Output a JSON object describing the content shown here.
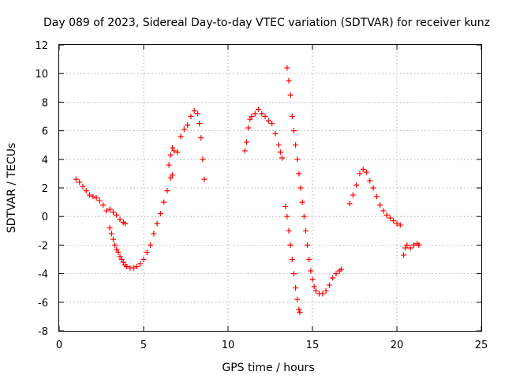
{
  "chart_data": {
    "type": "scatter",
    "title": "Day 089 of 2023, Sidereal Day-to-day VTEC variation (SDTVAR) for receiver kunz",
    "xlabel": "GPS time / hours",
    "ylabel": "SDTVAR / TECUs",
    "xlim": [
      0,
      25
    ],
    "ylim": [
      -8,
      12
    ],
    "xticks": [
      "0",
      "5",
      "10",
      "15",
      "20",
      "25"
    ],
    "yticks": [
      "-8",
      "-6",
      "-4",
      "-2",
      "0",
      "2",
      "4",
      "6",
      "8",
      "10",
      "12"
    ],
    "grid": true,
    "marker": "+",
    "color": "#ff0000",
    "series": [
      {
        "segments": [
          [
            [
              1.0,
              2.6
            ],
            [
              1.2,
              2.4
            ],
            [
              1.4,
              2.1
            ],
            [
              1.6,
              1.8
            ],
            [
              1.8,
              1.5
            ],
            [
              2.0,
              1.4
            ],
            [
              2.2,
              1.3
            ],
            [
              2.4,
              1.1
            ],
            [
              2.6,
              0.8
            ],
            [
              2.8,
              0.4
            ],
            [
              3.0,
              0.5
            ],
            [
              3.2,
              0.3
            ],
            [
              3.4,
              0.1
            ],
            [
              3.6,
              -0.2
            ],
            [
              3.8,
              -0.4
            ],
            [
              3.9,
              -0.5
            ]
          ],
          [
            [
              3.0,
              -0.8
            ],
            [
              3.1,
              -1.2
            ],
            [
              3.2,
              -1.6
            ],
            [
              3.3,
              -2.0
            ],
            [
              3.4,
              -2.3
            ],
            [
              3.5,
              -2.5
            ],
            [
              3.6,
              -2.8
            ],
            [
              3.7,
              -3.0
            ],
            [
              3.8,
              -3.2
            ],
            [
              3.9,
              -3.4
            ],
            [
              4.0,
              -3.5
            ],
            [
              4.2,
              -3.6
            ],
            [
              4.4,
              -3.6
            ],
            [
              4.6,
              -3.5
            ],
            [
              4.8,
              -3.3
            ],
            [
              5.0,
              -3.0
            ],
            [
              5.2,
              -2.5
            ],
            [
              5.4,
              -2.0
            ],
            [
              5.6,
              -1.2
            ],
            [
              5.8,
              -0.5
            ],
            [
              6.0,
              0.2
            ],
            [
              6.2,
              1.0
            ],
            [
              6.4,
              1.8
            ],
            [
              6.6,
              2.7
            ],
            [
              6.7,
              2.9
            ]
          ],
          [
            [
              6.5,
              3.6
            ],
            [
              6.6,
              4.3
            ],
            [
              6.7,
              4.8
            ],
            [
              6.8,
              4.6
            ],
            [
              7.0,
              4.5
            ],
            [
              7.2,
              5.6
            ],
            [
              7.4,
              6.1
            ],
            [
              7.6,
              6.4
            ],
            [
              7.8,
              7.0
            ],
            [
              8.0,
              7.4
            ],
            [
              8.2,
              7.2
            ],
            [
              8.3,
              6.5
            ],
            [
              8.4,
              5.5
            ],
            [
              8.5,
              4.0
            ],
            [
              8.6,
              2.6
            ]
          ],
          [
            [
              11.0,
              4.6
            ],
            [
              11.1,
              5.2
            ],
            [
              11.2,
              6.2
            ],
            [
              11.3,
              6.8
            ],
            [
              11.4,
              7.0
            ],
            [
              11.6,
              7.2
            ],
            [
              11.8,
              7.5
            ],
            [
              12.0,
              7.2
            ],
            [
              12.2,
              7.0
            ],
            [
              12.4,
              6.7
            ],
            [
              12.6,
              6.5
            ],
            [
              12.8,
              5.8
            ],
            [
              13.0,
              5.0
            ],
            [
              13.1,
              4.5
            ],
            [
              13.2,
              4.1
            ]
          ],
          [
            [
              13.5,
              10.4
            ],
            [
              13.6,
              9.5
            ],
            [
              13.7,
              8.5
            ],
            [
              13.8,
              7.0
            ],
            [
              13.9,
              6.0
            ],
            [
              14.0,
              5.0
            ],
            [
              14.1,
              4.0
            ],
            [
              14.2,
              3.0
            ],
            [
              14.3,
              2.0
            ],
            [
              14.4,
              1.0
            ],
            [
              14.5,
              0.0
            ],
            [
              14.6,
              -1.0
            ],
            [
              14.7,
              -2.0
            ],
            [
              14.8,
              -3.0
            ],
            [
              14.9,
              -3.8
            ],
            [
              15.0,
              -4.4
            ],
            [
              15.1,
              -4.9
            ],
            [
              15.2,
              -5.2
            ],
            [
              15.4,
              -5.4
            ],
            [
              15.6,
              -5.4
            ],
            [
              15.8,
              -5.2
            ],
            [
              16.0,
              -4.8
            ],
            [
              16.2,
              -4.3
            ],
            [
              16.4,
              -4.0
            ],
            [
              16.6,
              -3.8
            ],
            [
              16.7,
              -3.7
            ]
          ],
          [
            [
              13.4,
              0.7
            ],
            [
              13.5,
              0.0
            ],
            [
              13.6,
              -1.0
            ],
            [
              13.7,
              -2.0
            ],
            [
              13.8,
              -3.0
            ],
            [
              13.9,
              -4.0
            ],
            [
              14.0,
              -5.0
            ],
            [
              14.1,
              -5.8
            ],
            [
              14.2,
              -6.5
            ],
            [
              14.25,
              -6.7
            ]
          ],
          [
            [
              17.2,
              0.9
            ],
            [
              17.4,
              1.5
            ],
            [
              17.6,
              2.2
            ],
            [
              17.8,
              3.0
            ],
            [
              18.0,
              3.3
            ],
            [
              18.2,
              3.1
            ],
            [
              18.4,
              2.5
            ],
            [
              18.6,
              2.0
            ],
            [
              18.8,
              1.4
            ],
            [
              19.0,
              0.8
            ],
            [
              19.2,
              0.4
            ],
            [
              19.4,
              0.1
            ],
            [
              19.6,
              -0.1
            ],
            [
              19.8,
              -0.3
            ],
            [
              20.0,
              -0.5
            ],
            [
              20.2,
              -0.6
            ]
          ],
          [
            [
              20.4,
              -2.7
            ],
            [
              20.5,
              -2.2
            ],
            [
              20.6,
              -2.0
            ],
            [
              20.8,
              -2.2
            ],
            [
              21.0,
              -2.0
            ],
            [
              21.2,
              -1.9
            ],
            [
              21.3,
              -2.0
            ]
          ]
        ]
      }
    ]
  }
}
